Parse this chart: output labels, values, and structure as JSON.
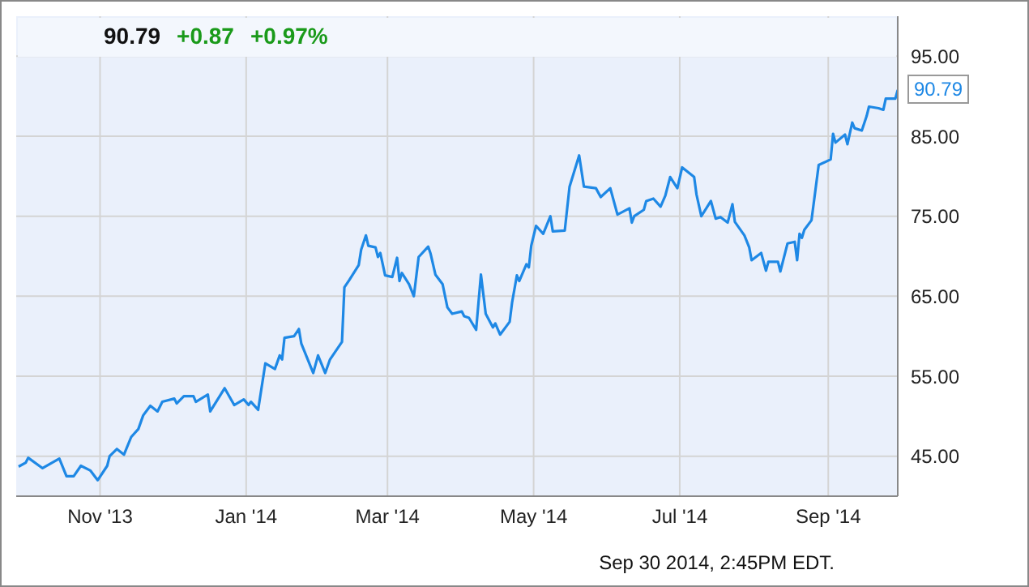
{
  "chart_data": {
    "type": "line",
    "color": "#1e88e5",
    "grid": true,
    "annotations": [
      "90.79",
      "+0.87",
      "+0.97%",
      "Sep 30 2014, 2:45PM EDT.",
      {
        "text": "90.79",
        "x": "2014-09-30",
        "y": 90.79
      }
    ],
    "xlim": [
      "2013-09-27",
      "2014-09-30"
    ],
    "xticks": [
      {
        "value": "2013-11-01",
        "label": "Nov '13"
      },
      {
        "value": "2014-01-01",
        "label": "Jan '14"
      },
      {
        "value": "2014-03-01",
        "label": "Mar '14"
      },
      {
        "value": "2014-05-01",
        "label": "May '14"
      },
      {
        "value": "2014-07-01",
        "label": "Jul '14"
      },
      {
        "value": "2014-09-01",
        "label": "Sep '14"
      }
    ],
    "ylim": [
      40,
      100
    ],
    "yticks": [
      {
        "value": 45,
        "label": "45.00"
      },
      {
        "value": 55,
        "label": "55.00"
      },
      {
        "value": 65,
        "label": "65.00"
      },
      {
        "value": 75,
        "label": "75.00"
      },
      {
        "value": 85,
        "label": "85.00"
      },
      {
        "value": 95,
        "label": "95.00"
      }
    ],
    "x": [
      "2013-09-28",
      "2013-10-01",
      "2013-10-02",
      "2013-10-08",
      "2013-10-15",
      "2013-10-18",
      "2013-10-21",
      "2013-10-24",
      "2013-10-28",
      "2013-10-31",
      "2013-11-04",
      "2013-11-05",
      "2013-11-08",
      "2013-11-11",
      "2013-11-14",
      "2013-11-17",
      "2013-11-19",
      "2013-11-22",
      "2013-11-25",
      "2013-11-27",
      "2013-12-02",
      "2013-12-03",
      "2013-12-06",
      "2013-12-10",
      "2013-12-11",
      "2013-12-16",
      "2013-12-17",
      "2013-12-23",
      "2013-12-27",
      "2013-12-31",
      "2014-01-02",
      "2014-01-03",
      "2014-01-06",
      "2014-01-09",
      "2014-01-13",
      "2014-01-15",
      "2014-01-16",
      "2014-01-17",
      "2014-01-21",
      "2014-01-23",
      "2014-01-24",
      "2014-01-29",
      "2014-01-31",
      "2014-02-03",
      "2014-02-05",
      "2014-02-10",
      "2014-02-11",
      "2014-02-13",
      "2014-02-17",
      "2014-02-18",
      "2014-02-20",
      "2014-02-21",
      "2014-02-24",
      "2014-02-25",
      "2014-02-26",
      "2014-02-28",
      "2014-03-03",
      "2014-03-05",
      "2014-03-06",
      "2014-03-07",
      "2014-03-10",
      "2014-03-12",
      "2014-03-14",
      "2014-03-18",
      "2014-03-19",
      "2014-03-21",
      "2014-03-24",
      "2014-03-26",
      "2014-03-28",
      "2014-04-01",
      "2014-04-02",
      "2014-04-04",
      "2014-04-07",
      "2014-04-09",
      "2014-04-11",
      "2014-04-14",
      "2014-04-15",
      "2014-04-17",
      "2014-04-21",
      "2014-04-22",
      "2014-04-24",
      "2014-04-25",
      "2014-04-28",
      "2014-04-29",
      "2014-04-30",
      "2014-05-02",
      "2014-05-05",
      "2014-05-08",
      "2014-05-09",
      "2014-05-14",
      "2014-05-16",
      "2014-05-20",
      "2014-05-22",
      "2014-05-27",
      "2014-05-29",
      "2014-06-02",
      "2014-06-05",
      "2014-06-10",
      "2014-06-11",
      "2014-06-12",
      "2014-06-16",
      "2014-06-17",
      "2014-06-20",
      "2014-06-23",
      "2014-06-25",
      "2014-06-27",
      "2014-06-30",
      "2014-07-02",
      "2014-07-07",
      "2014-07-08",
      "2014-07-10",
      "2014-07-14",
      "2014-07-16",
      "2014-07-18",
      "2014-07-21",
      "2014-07-23",
      "2014-07-24",
      "2014-07-28",
      "2014-07-30",
      "2014-07-31",
      "2014-08-04",
      "2014-08-06",
      "2014-08-07",
      "2014-08-11",
      "2014-08-12",
      "2014-08-15",
      "2014-08-18",
      "2014-08-19",
      "2014-08-20",
      "2014-08-21",
      "2014-08-22",
      "2014-08-25",
      "2014-08-28",
      "2014-09-02",
      "2014-09-03",
      "2014-09-04",
      "2014-09-08",
      "2014-09-09",
      "2014-09-11",
      "2014-09-12",
      "2014-09-15",
      "2014-09-17",
      "2014-09-18",
      "2014-09-22",
      "2014-09-24",
      "2014-09-25",
      "2014-09-29",
      "2014-09-30"
    ],
    "values": [
      43.7,
      44.2,
      44.8,
      43.5,
      44.7,
      42.5,
      42.5,
      43.8,
      43.2,
      42.0,
      43.8,
      45.0,
      45.9,
      45.2,
      47.4,
      48.4,
      50.1,
      51.3,
      50.6,
      51.8,
      52.2,
      51.6,
      52.5,
      52.5,
      51.8,
      52.7,
      50.6,
      53.5,
      51.4,
      52.1,
      51.4,
      51.8,
      50.8,
      56.6,
      55.9,
      57.6,
      57.1,
      59.8,
      60.0,
      60.9,
      59.1,
      55.4,
      57.6,
      55.4,
      57.1,
      59.3,
      66.1,
      67.0,
      68.9,
      70.8,
      72.6,
      71.3,
      71.1,
      69.9,
      70.4,
      67.6,
      67.4,
      69.8,
      66.9,
      67.9,
      66.5,
      65.0,
      69.9,
      71.2,
      70.3,
      67.7,
      66.5,
      63.6,
      62.8,
      63.1,
      62.5,
      62.3,
      60.8,
      67.7,
      62.8,
      61.1,
      61.6,
      60.2,
      61.8,
      64.2,
      67.6,
      66.9,
      69.0,
      68.6,
      71.3,
      73.8,
      72.8,
      75.0,
      73.1,
      73.2,
      78.7,
      82.6,
      78.7,
      78.5,
      77.4,
      78.5,
      75.2,
      76.0,
      74.2,
      75.0,
      75.8,
      76.9,
      77.2,
      76.2,
      77.6,
      79.9,
      78.5,
      81.1,
      79.9,
      77.7,
      75.0,
      76.9,
      74.7,
      74.9,
      74.2,
      76.5,
      74.3,
      72.6,
      71.1,
      69.5,
      70.4,
      68.2,
      69.3,
      69.3,
      68.1,
      71.6,
      71.8,
      69.5,
      72.8,
      72.3,
      73.3,
      74.5,
      81.4,
      82.1,
      85.3,
      84.2,
      85.2,
      84.0,
      86.7,
      86.0,
      85.7,
      87.5,
      88.7,
      88.5,
      88.3,
      89.7,
      89.7,
      90.79
    ]
  }
}
